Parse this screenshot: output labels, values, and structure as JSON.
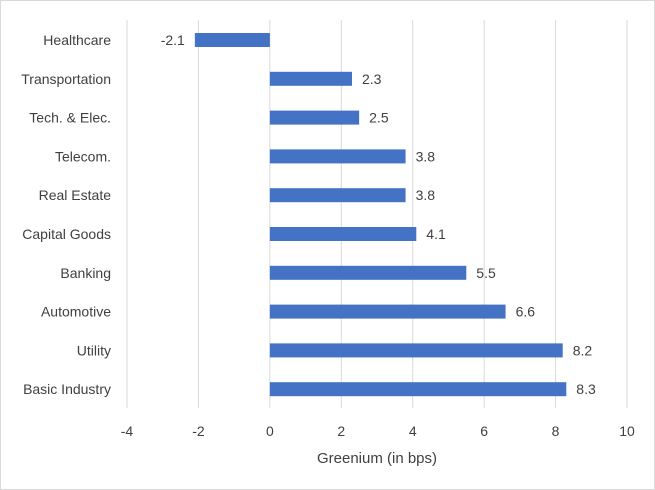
{
  "chart_data": {
    "type": "bar",
    "orientation": "horizontal",
    "categories": [
      "Healthcare",
      "Transportation",
      "Tech. & Elec.",
      "Telecom.",
      "Real Estate",
      "Capital Goods",
      "Banking",
      "Automotive",
      "Utility",
      "Basic Industry"
    ],
    "values": [
      -2.1,
      2.3,
      2.5,
      3.8,
      3.8,
      4.1,
      5.5,
      6.6,
      8.2,
      8.3
    ],
    "data_labels": [
      "-2.1",
      "2.3",
      "2.5",
      "3.8",
      "3.8",
      "4.1",
      "5.5",
      "6.6",
      "8.2",
      "8.3"
    ],
    "xlabel": "Greenium (in bps)",
    "ylabel": "",
    "xlim": [
      -4,
      10
    ],
    "xticks": [
      -4,
      -2,
      0,
      2,
      4,
      6,
      8,
      10
    ],
    "xtick_labels": [
      "-4",
      "-2",
      "0",
      "2",
      "4",
      "6",
      "8",
      "10"
    ],
    "grid": "vertical",
    "legend": "none",
    "bar_color": "#4472c4",
    "grid_color": "#d9d9d9"
  }
}
